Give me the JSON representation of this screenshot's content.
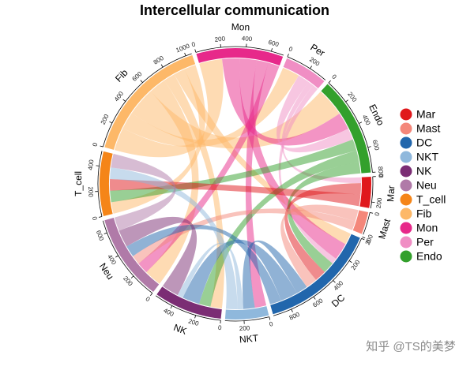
{
  "chart_data": {
    "type": "chord",
    "title": "Intercellular communication",
    "sectors": [
      {
        "name": "Mar",
        "color": "#e0181c",
        "total": 250,
        "ticks": [
          0,
          200
        ]
      },
      {
        "name": "Mast",
        "color": "#f4877a",
        "total": 180,
        "ticks": [
          0,
          200
        ]
      },
      {
        "name": "DC",
        "color": "#2166ac",
        "total": 950,
        "ticks": [
          0,
          200,
          400,
          600,
          800
        ]
      },
      {
        "name": "NKT",
        "color": "#8fb8dc",
        "total": 350,
        "ticks": [
          0,
          200
        ]
      },
      {
        "name": "NK",
        "color": "#7b2d74",
        "total": 550,
        "ticks": [
          0,
          200,
          400
        ]
      },
      {
        "name": "Neu",
        "color": "#b07aa8",
        "total": 700,
        "ticks": [
          0,
          200,
          400,
          600
        ]
      },
      {
        "name": "T_cell",
        "color": "#f58518",
        "total": 520,
        "ticks": [
          0,
          200,
          400
        ]
      },
      {
        "name": "Fib",
        "color": "#fdb868",
        "total": 1050,
        "ticks": [
          0,
          200,
          400,
          600,
          800,
          1000
        ]
      },
      {
        "name": "Mon",
        "color": "#e7298a",
        "total": 700,
        "ticks": [
          0,
          200,
          400,
          600
        ]
      },
      {
        "name": "Per",
        "color": "#f08ec4",
        "total": 350,
        "ticks": [
          0,
          200
        ]
      },
      {
        "name": "Endo",
        "color": "#33a02c",
        "total": 800,
        "ticks": [
          0,
          200,
          400,
          600,
          800
        ]
      }
    ],
    "links": [
      {
        "source": "Fib",
        "target": "Mon",
        "value": 200
      },
      {
        "source": "Fib",
        "target": "Per",
        "value": 150
      },
      {
        "source": "Fib",
        "target": "Endo",
        "value": 250
      },
      {
        "source": "Fib",
        "target": "Neu",
        "value": 150
      },
      {
        "source": "Fib",
        "target": "NK",
        "value": 100
      },
      {
        "source": "Fib",
        "target": "DC",
        "value": 100
      },
      {
        "source": "Fib",
        "target": "T_cell",
        "value": 100
      },
      {
        "source": "Mon",
        "target": "Endo",
        "value": 150
      },
      {
        "source": "Mon",
        "target": "DC",
        "value": 150
      },
      {
        "source": "Mon",
        "target": "NKT",
        "value": 100
      },
      {
        "source": "Mon",
        "target": "Neu",
        "value": 100
      },
      {
        "source": "Per",
        "target": "Endo",
        "value": 100
      },
      {
        "source": "Per",
        "target": "Mar",
        "value": 50
      },
      {
        "source": "Per",
        "target": "DC",
        "value": 50
      },
      {
        "source": "Endo",
        "target": "T_cell",
        "value": 100
      },
      {
        "source": "Endo",
        "target": "NK",
        "value": 100
      },
      {
        "source": "Endo",
        "target": "DC",
        "value": 100
      },
      {
        "source": "Mar",
        "target": "DC",
        "value": 100
      },
      {
        "source": "Mar",
        "target": "T_cell",
        "value": 100
      },
      {
        "source": "Mast",
        "target": "DC",
        "value": 100
      },
      {
        "source": "Mast",
        "target": "Neu",
        "value": 80
      },
      {
        "source": "DC",
        "target": "NKT",
        "value": 100
      },
      {
        "source": "DC",
        "target": "NK",
        "value": 150
      },
      {
        "source": "DC",
        "target": "Neu",
        "value": 100
      },
      {
        "source": "NKT",
        "target": "NK",
        "value": 50
      },
      {
        "source": "NKT",
        "target": "T_cell",
        "value": 100
      },
      {
        "source": "NK",
        "target": "Neu",
        "value": 150
      },
      {
        "source": "Neu",
        "target": "T_cell",
        "value": 120
      }
    ],
    "watermark": "知乎 @TS的美梦"
  }
}
